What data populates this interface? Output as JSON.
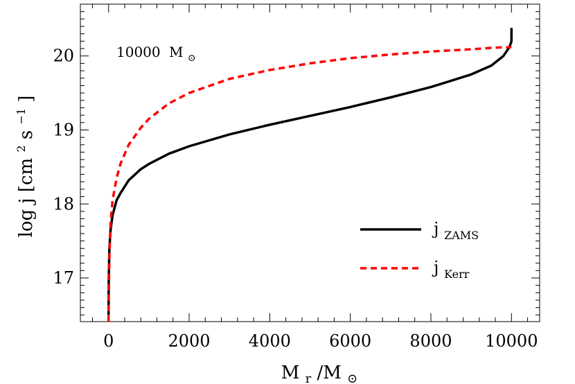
{
  "chart_data": {
    "type": "line",
    "annotation": {
      "value": "10000",
      "unit_symbol": "M",
      "unit_sub": "⊙"
    },
    "xlabel": {
      "main": "M",
      "sub1": "r",
      "mid": "/M",
      "sub2": "⊙"
    },
    "ylabel": {
      "pre": "log j [cm",
      "sup1": "2",
      "mid": " s",
      "sup2": "−1",
      "post": "]"
    },
    "xlim": [
      -700,
      10700
    ],
    "ylim": [
      16.41,
      20.7
    ],
    "x_ticks": [
      0,
      2000,
      4000,
      6000,
      8000,
      10000
    ],
    "x_tick_labels": [
      "0",
      "2000",
      "4000",
      "6000",
      "8000",
      "10000"
    ],
    "y_ticks": [
      17,
      18,
      19,
      20
    ],
    "y_tick_labels": [
      "17",
      "18",
      "19",
      "20"
    ],
    "grid": false,
    "legend_position": "lower-right",
    "series": [
      {
        "name_main": "j",
        "name_sub": "ZAMS",
        "color": "#000000",
        "style": "solid",
        "x": [
          0,
          5,
          20,
          50,
          100,
          200,
          300,
          500,
          800,
          1000,
          1500,
          2000,
          3000,
          4000,
          5000,
          6000,
          7000,
          8000,
          9000,
          9500,
          9800,
          9950,
          10000,
          10000
        ],
        "y": [
          16.5,
          17.0,
          17.4,
          17.65,
          17.85,
          18.05,
          18.15,
          18.32,
          18.47,
          18.54,
          18.68,
          18.78,
          18.94,
          19.07,
          19.19,
          19.31,
          19.44,
          19.58,
          19.75,
          19.87,
          20.0,
          20.12,
          20.2,
          20.38
        ]
      },
      {
        "name_main": "j",
        "name_sub": "Kerr",
        "color": "#ff0000",
        "style": "dashed",
        "x": [
          0,
          5,
          20,
          50,
          100,
          200,
          300,
          500,
          800,
          1000,
          1500,
          2000,
          3000,
          4000,
          5000,
          6000,
          7000,
          8000,
          9000,
          9500,
          10000
        ],
        "y": [
          16.41,
          16.8,
          17.3,
          17.75,
          18.05,
          18.35,
          18.55,
          18.8,
          19.03,
          19.15,
          19.36,
          19.5,
          19.69,
          19.81,
          19.9,
          19.97,
          20.02,
          20.06,
          20.09,
          20.11,
          20.12
        ]
      }
    ]
  }
}
